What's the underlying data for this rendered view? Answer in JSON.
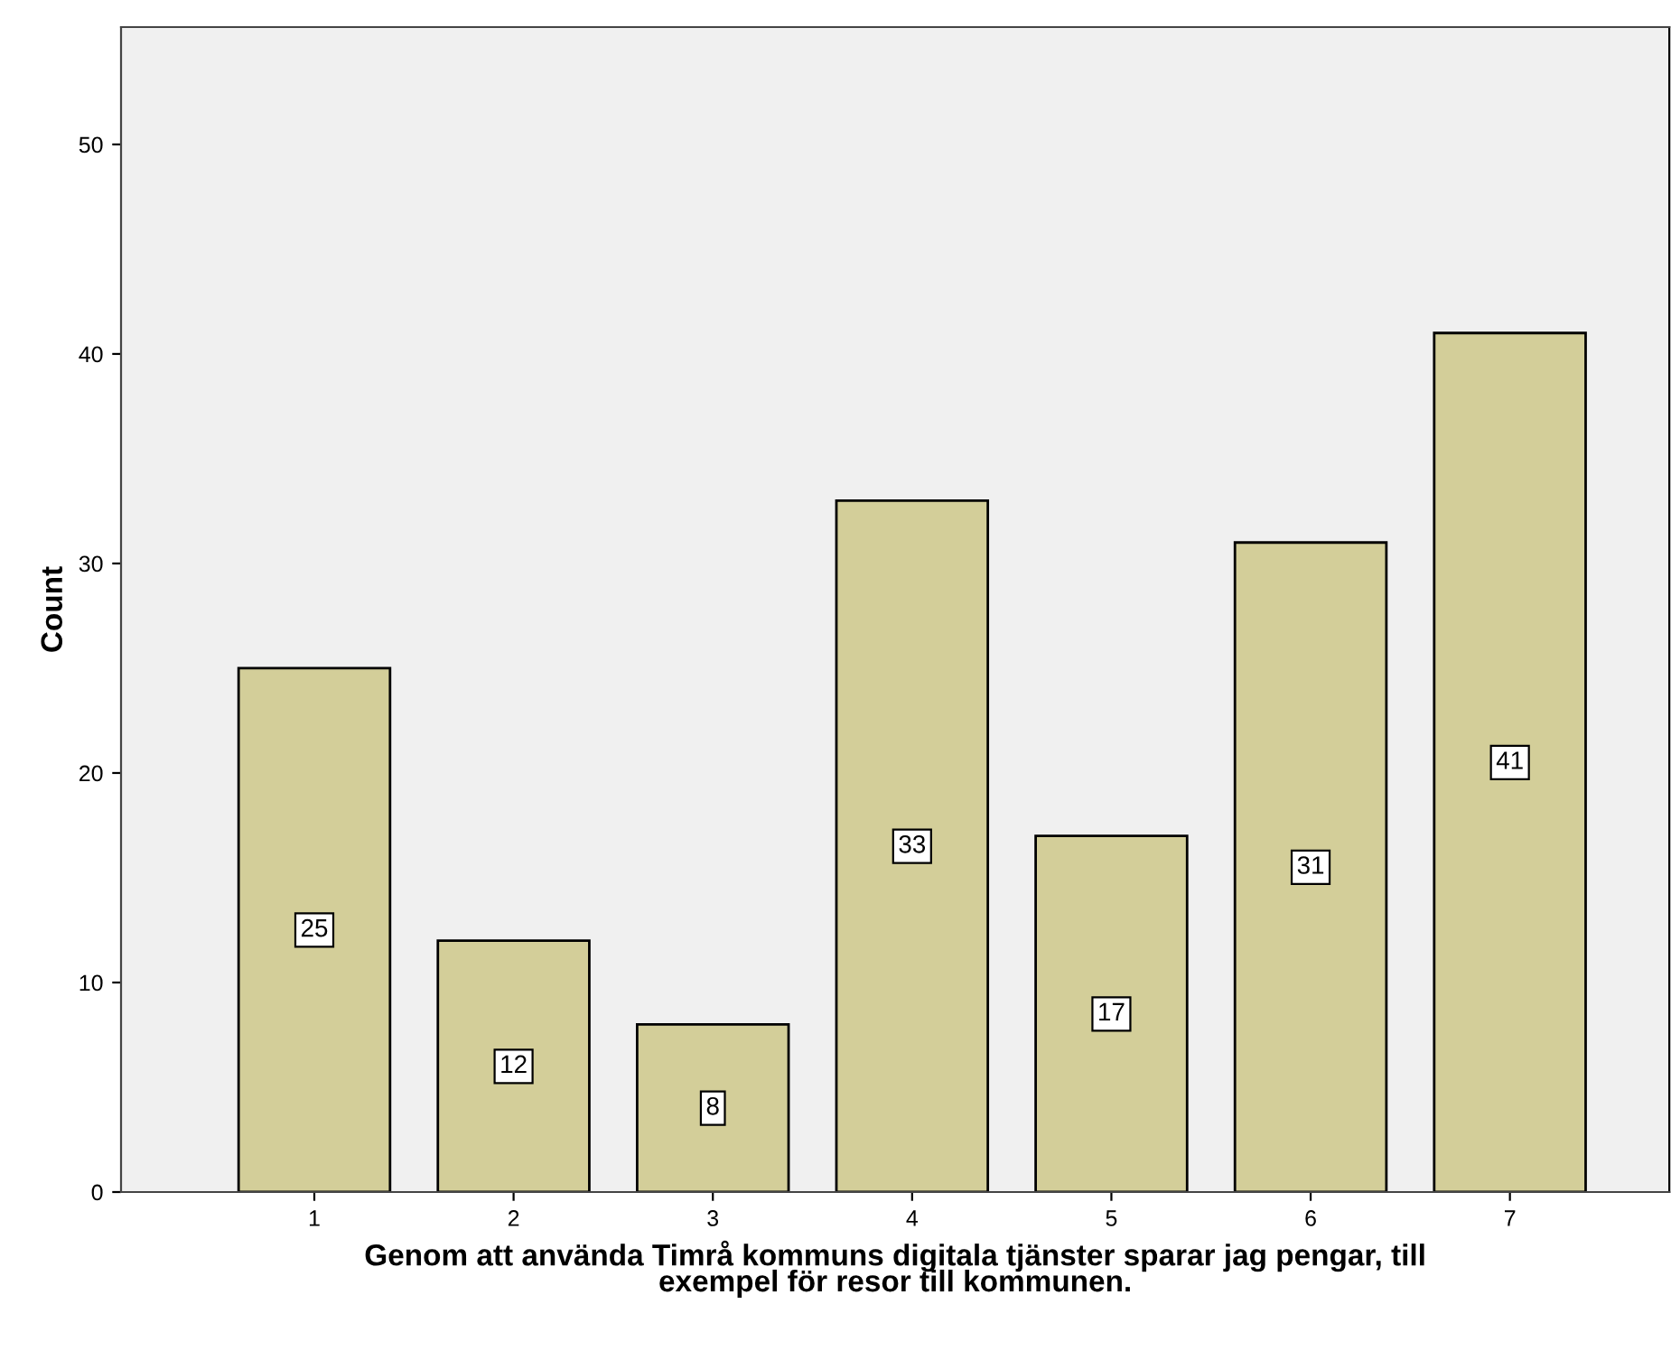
{
  "chart_data": {
    "type": "bar",
    "xlabel": "Genom att använda Timrå kommuns digitala tjänster sparar jag pengar, till\nexempel för resor till kommunen.",
    "ylabel": "Count",
    "categories": [
      "1",
      "2",
      "3",
      "4",
      "5",
      "6",
      "7"
    ],
    "values": [
      25,
      12,
      8,
      33,
      17,
      31,
      41
    ],
    "color": "#d3ce99",
    "ylim": [
      0,
      55.6
    ],
    "yticks": [
      0,
      10,
      20,
      30,
      40,
      50
    ],
    "grid": false,
    "data_labels": true
  }
}
